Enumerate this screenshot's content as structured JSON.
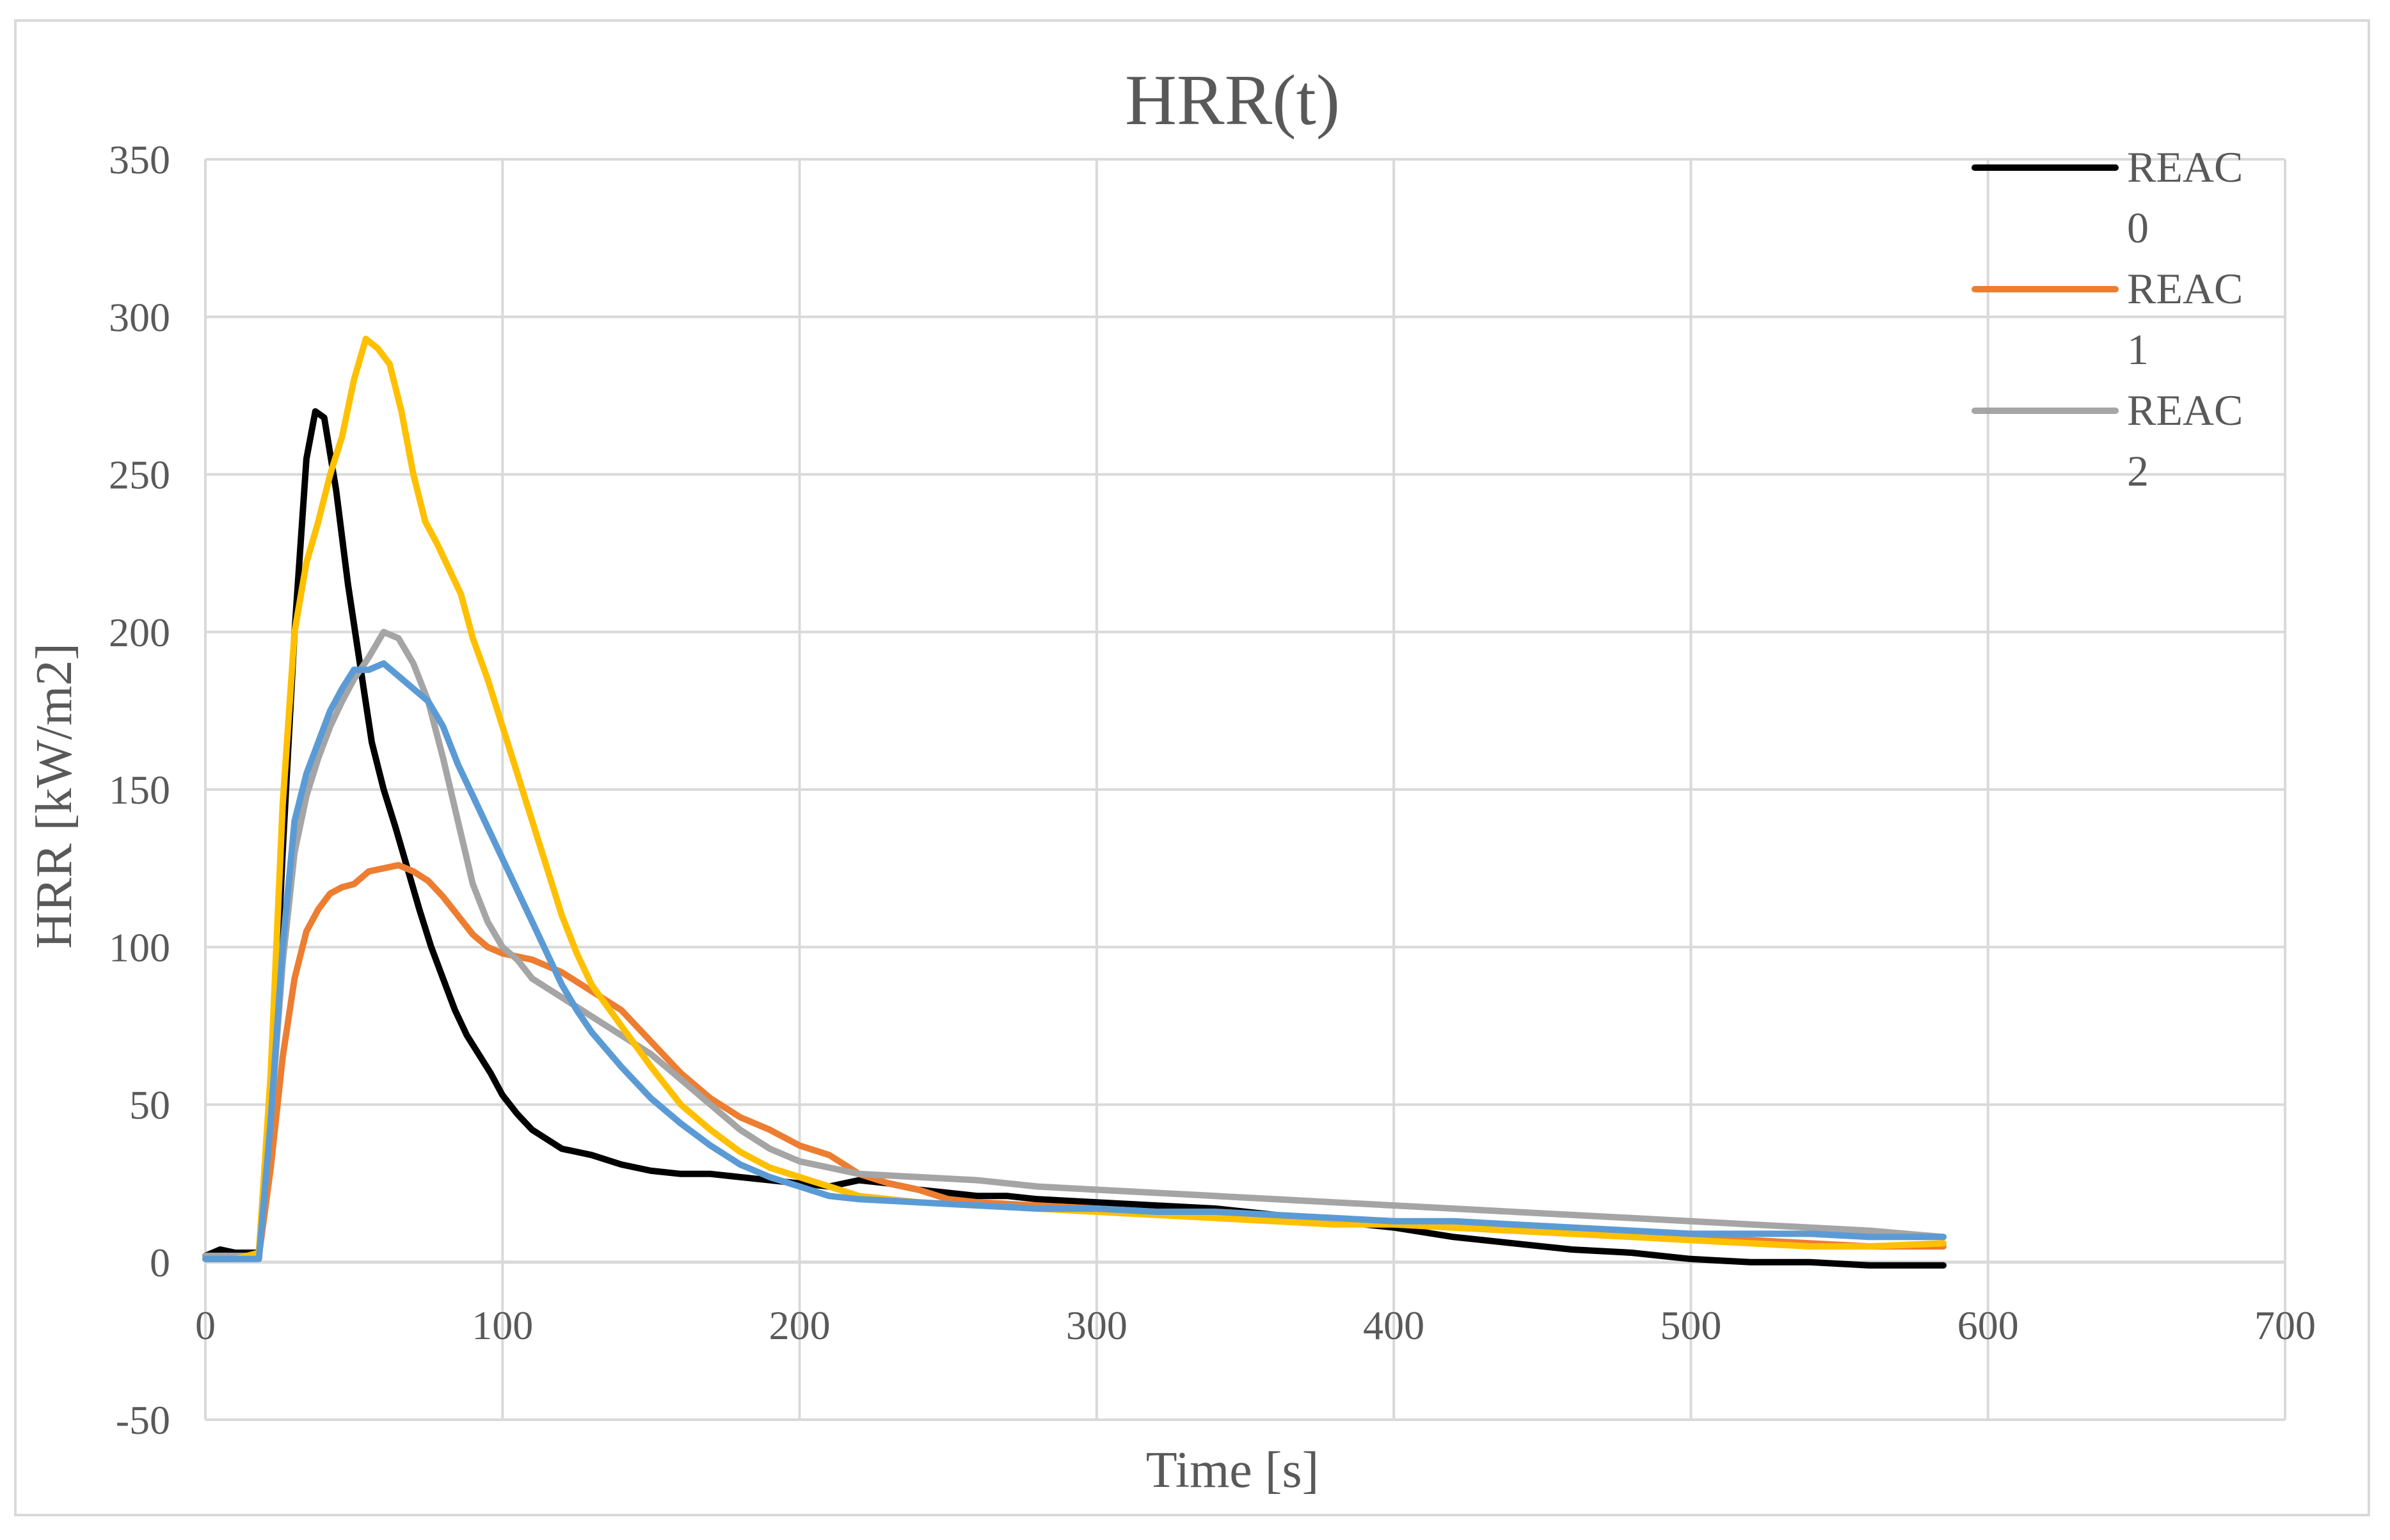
{
  "chart_data": {
    "type": "line",
    "title": "HRR(t)",
    "xlabel": "Time [s]",
    "ylabel": "HRR [kW/m2]",
    "xlim": [
      0,
      700
    ],
    "ylim": [
      -50,
      350
    ],
    "xticks": [
      0,
      100,
      200,
      300,
      400,
      500,
      600,
      700
    ],
    "yticks": [
      -50,
      0,
      50,
      100,
      150,
      200,
      250,
      300,
      350
    ],
    "xtick_labels": [
      "0",
      "100",
      "200",
      "300",
      "400",
      "500",
      "600",
      "700"
    ],
    "ytick_labels": [
      "-50",
      "0",
      "50",
      "100",
      "150",
      "200",
      "250",
      "300",
      "350"
    ],
    "grid": true,
    "legend_position": "top-right",
    "series": [
      {
        "name": "REAC 0",
        "legend_lines": [
          "REAC",
          "0"
        ],
        "color": "#000000",
        "in_legend": true,
        "points": [
          [
            0,
            2
          ],
          [
            5,
            4
          ],
          [
            10,
            3
          ],
          [
            15,
            3
          ],
          [
            18,
            3
          ],
          [
            22,
            50
          ],
          [
            26,
            130
          ],
          [
            30,
            200
          ],
          [
            34,
            255
          ],
          [
            37,
            270
          ],
          [
            40,
            268
          ],
          [
            44,
            245
          ],
          [
            48,
            215
          ],
          [
            52,
            190
          ],
          [
            56,
            165
          ],
          [
            60,
            150
          ],
          [
            64,
            138
          ],
          [
            68,
            125
          ],
          [
            72,
            112
          ],
          [
            76,
            100
          ],
          [
            80,
            90
          ],
          [
            84,
            80
          ],
          [
            88,
            72
          ],
          [
            92,
            66
          ],
          [
            96,
            60
          ],
          [
            100,
            53
          ],
          [
            105,
            47
          ],
          [
            110,
            42
          ],
          [
            115,
            39
          ],
          [
            120,
            36
          ],
          [
            125,
            35
          ],
          [
            130,
            34
          ],
          [
            140,
            31
          ],
          [
            150,
            29
          ],
          [
            160,
            28
          ],
          [
            170,
            28
          ],
          [
            180,
            27
          ],
          [
            190,
            26
          ],
          [
            200,
            25
          ],
          [
            210,
            24
          ],
          [
            220,
            26
          ],
          [
            230,
            25
          ],
          [
            240,
            23
          ],
          [
            250,
            22
          ],
          [
            260,
            21
          ],
          [
            270,
            21
          ],
          [
            280,
            20
          ],
          [
            300,
            19
          ],
          [
            320,
            18
          ],
          [
            340,
            17
          ],
          [
            360,
            15
          ],
          [
            380,
            13
          ],
          [
            400,
            11
          ],
          [
            420,
            8
          ],
          [
            440,
            6
          ],
          [
            460,
            4
          ],
          [
            480,
            3
          ],
          [
            500,
            1
          ],
          [
            520,
            0
          ],
          [
            540,
            0
          ],
          [
            560,
            -1
          ],
          [
            585,
            -1
          ]
        ]
      },
      {
        "name": "REAC 1",
        "legend_lines": [
          "REAC",
          "1"
        ],
        "color": "#ed7d31",
        "in_legend": true,
        "points": [
          [
            0,
            1
          ],
          [
            10,
            1
          ],
          [
            18,
            2
          ],
          [
            22,
            30
          ],
          [
            26,
            65
          ],
          [
            30,
            90
          ],
          [
            34,
            105
          ],
          [
            38,
            112
          ],
          [
            42,
            117
          ],
          [
            46,
            119
          ],
          [
            50,
            120
          ],
          [
            55,
            124
          ],
          [
            60,
            125
          ],
          [
            65,
            126
          ],
          [
            70,
            124
          ],
          [
            75,
            121
          ],
          [
            80,
            116
          ],
          [
            85,
            110
          ],
          [
            90,
            104
          ],
          [
            95,
            100
          ],
          [
            100,
            98
          ],
          [
            110,
            96
          ],
          [
            120,
            92
          ],
          [
            130,
            86
          ],
          [
            140,
            80
          ],
          [
            150,
            70
          ],
          [
            160,
            60
          ],
          [
            170,
            52
          ],
          [
            180,
            46
          ],
          [
            190,
            42
          ],
          [
            200,
            37
          ],
          [
            210,
            34
          ],
          [
            220,
            28
          ],
          [
            230,
            25
          ],
          [
            240,
            23
          ],
          [
            250,
            20
          ],
          [
            260,
            19
          ],
          [
            280,
            18
          ],
          [
            300,
            17
          ],
          [
            320,
            16
          ],
          [
            340,
            15
          ],
          [
            360,
            14
          ],
          [
            380,
            13
          ],
          [
            400,
            12
          ],
          [
            420,
            11
          ],
          [
            440,
            10
          ],
          [
            460,
            10
          ],
          [
            480,
            9
          ],
          [
            500,
            8
          ],
          [
            520,
            7
          ],
          [
            540,
            6
          ],
          [
            560,
            5
          ],
          [
            585,
            5
          ]
        ]
      },
      {
        "name": "REAC 2",
        "legend_lines": [
          "REAC",
          "2"
        ],
        "color": "#a5a5a5",
        "in_legend": true,
        "points": [
          [
            0,
            2
          ],
          [
            10,
            2
          ],
          [
            18,
            2
          ],
          [
            22,
            45
          ],
          [
            26,
            95
          ],
          [
            30,
            130
          ],
          [
            34,
            148
          ],
          [
            38,
            160
          ],
          [
            42,
            170
          ],
          [
            46,
            178
          ],
          [
            50,
            185
          ],
          [
            55,
            192
          ],
          [
            60,
            200
          ],
          [
            65,
            198
          ],
          [
            70,
            190
          ],
          [
            75,
            178
          ],
          [
            80,
            160
          ],
          [
            85,
            140
          ],
          [
            90,
            120
          ],
          [
            95,
            108
          ],
          [
            100,
            100
          ],
          [
            105,
            96
          ],
          [
            110,
            90
          ],
          [
            115,
            87
          ],
          [
            120,
            84
          ],
          [
            130,
            78
          ],
          [
            140,
            72
          ],
          [
            150,
            66
          ],
          [
            160,
            58
          ],
          [
            170,
            50
          ],
          [
            180,
            42
          ],
          [
            190,
            36
          ],
          [
            200,
            32
          ],
          [
            210,
            30
          ],
          [
            220,
            28
          ],
          [
            240,
            27
          ],
          [
            260,
            26
          ],
          [
            280,
            24
          ],
          [
            300,
            23
          ],
          [
            320,
            22
          ],
          [
            340,
            21
          ],
          [
            360,
            20
          ],
          [
            380,
            19
          ],
          [
            400,
            18
          ],
          [
            420,
            17
          ],
          [
            440,
            16
          ],
          [
            460,
            15
          ],
          [
            480,
            14
          ],
          [
            500,
            13
          ],
          [
            520,
            12
          ],
          [
            540,
            11
          ],
          [
            560,
            10
          ],
          [
            585,
            8
          ]
        ]
      },
      {
        "name": "",
        "legend_lines": [],
        "color": "#ffc000",
        "in_legend": false,
        "points": [
          [
            0,
            1
          ],
          [
            10,
            1
          ],
          [
            18,
            3
          ],
          [
            22,
            60
          ],
          [
            26,
            145
          ],
          [
            30,
            200
          ],
          [
            34,
            222
          ],
          [
            38,
            235
          ],
          [
            42,
            250
          ],
          [
            46,
            262
          ],
          [
            50,
            280
          ],
          [
            54,
            293
          ],
          [
            58,
            290
          ],
          [
            62,
            285
          ],
          [
            66,
            270
          ],
          [
            70,
            250
          ],
          [
            74,
            235
          ],
          [
            78,
            228
          ],
          [
            82,
            220
          ],
          [
            86,
            212
          ],
          [
            90,
            198
          ],
          [
            95,
            185
          ],
          [
            100,
            170
          ],
          [
            105,
            155
          ],
          [
            110,
            140
          ],
          [
            115,
            125
          ],
          [
            120,
            110
          ],
          [
            125,
            98
          ],
          [
            130,
            88
          ],
          [
            140,
            75
          ],
          [
            150,
            62
          ],
          [
            160,
            50
          ],
          [
            170,
            42
          ],
          [
            180,
            35
          ],
          [
            190,
            30
          ],
          [
            200,
            27
          ],
          [
            210,
            24
          ],
          [
            220,
            21
          ],
          [
            240,
            19
          ],
          [
            260,
            18
          ],
          [
            280,
            17
          ],
          [
            300,
            16
          ],
          [
            320,
            15
          ],
          [
            340,
            14
          ],
          [
            360,
            13
          ],
          [
            380,
            12
          ],
          [
            400,
            12
          ],
          [
            420,
            11
          ],
          [
            440,
            10
          ],
          [
            460,
            9
          ],
          [
            480,
            8
          ],
          [
            500,
            7
          ],
          [
            520,
            6
          ],
          [
            540,
            5
          ],
          [
            560,
            5
          ],
          [
            585,
            6
          ]
        ]
      },
      {
        "name": "",
        "legend_lines": [],
        "color": "#5b9bd5",
        "in_legend": false,
        "points": [
          [
            0,
            1
          ],
          [
            10,
            1
          ],
          [
            18,
            1
          ],
          [
            22,
            45
          ],
          [
            26,
            100
          ],
          [
            30,
            140
          ],
          [
            34,
            155
          ],
          [
            38,
            165
          ],
          [
            42,
            175
          ],
          [
            46,
            182
          ],
          [
            50,
            188
          ],
          [
            55,
            188
          ],
          [
            60,
            190
          ],
          [
            65,
            186
          ],
          [
            70,
            182
          ],
          [
            75,
            178
          ],
          [
            80,
            170
          ],
          [
            85,
            158
          ],
          [
            90,
            148
          ],
          [
            95,
            138
          ],
          [
            100,
            128
          ],
          [
            105,
            118
          ],
          [
            110,
            108
          ],
          [
            115,
            98
          ],
          [
            120,
            88
          ],
          [
            125,
            80
          ],
          [
            130,
            73
          ],
          [
            140,
            62
          ],
          [
            150,
            52
          ],
          [
            160,
            44
          ],
          [
            170,
            37
          ],
          [
            180,
            31
          ],
          [
            190,
            27
          ],
          [
            200,
            24
          ],
          [
            210,
            21
          ],
          [
            220,
            20
          ],
          [
            240,
            19
          ],
          [
            260,
            18
          ],
          [
            280,
            17
          ],
          [
            300,
            17
          ],
          [
            320,
            16
          ],
          [
            340,
            16
          ],
          [
            360,
            15
          ],
          [
            380,
            14
          ],
          [
            400,
            13
          ],
          [
            420,
            13
          ],
          [
            440,
            12
          ],
          [
            460,
            11
          ],
          [
            480,
            10
          ],
          [
            500,
            9
          ],
          [
            520,
            9
          ],
          [
            540,
            9
          ],
          [
            560,
            8
          ],
          [
            585,
            8
          ]
        ]
      }
    ]
  }
}
